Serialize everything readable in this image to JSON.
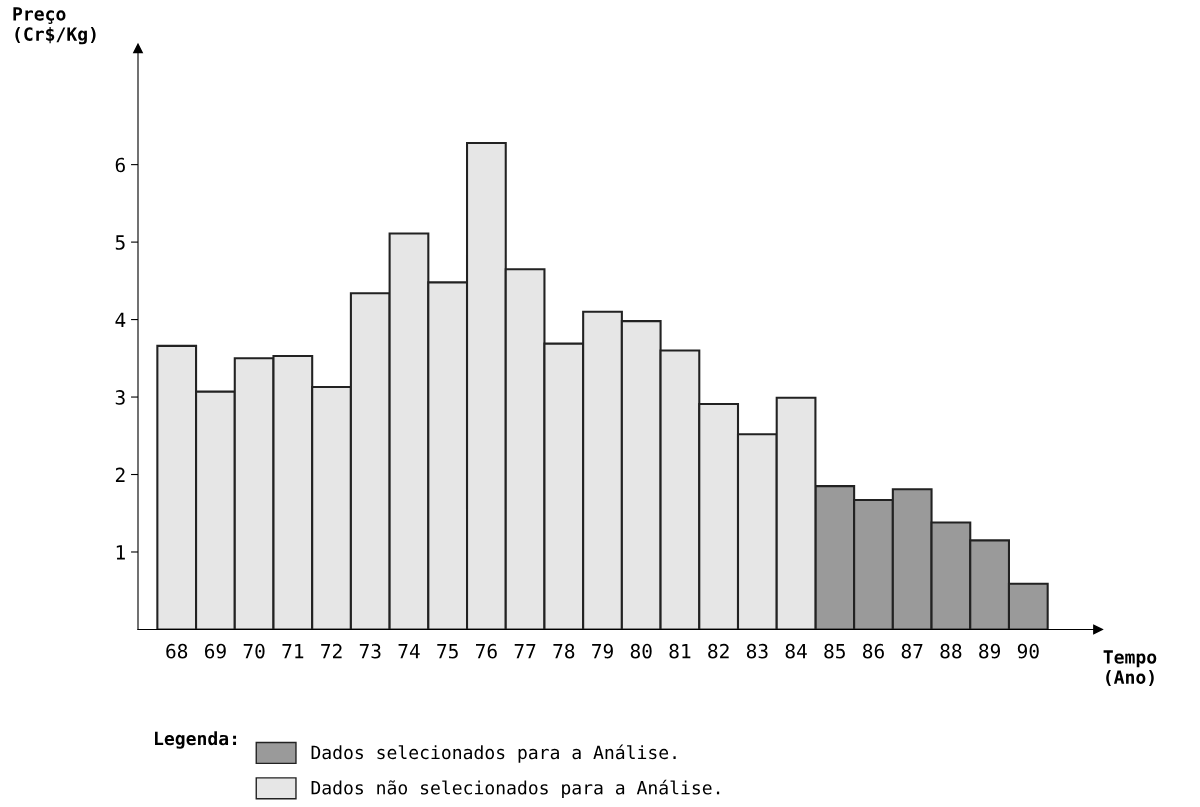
{
  "chart_data": {
    "type": "bar",
    "xlabel": "Tempo\n(Ano)",
    "ylabel": "Preço\n(Cr$/Kg)",
    "legend_title": "Legenda:",
    "categories": [
      "68",
      "69",
      "70",
      "71",
      "72",
      "73",
      "74",
      "75",
      "76",
      "77",
      "78",
      "79",
      "80",
      "81",
      "82",
      "83",
      "84",
      "85",
      "86",
      "87",
      "88",
      "89",
      "90"
    ],
    "series": [
      {
        "name": "Dados selecionados para a Análise.",
        "color": "#9a9a9a",
        "values": [
          null,
          null,
          null,
          null,
          null,
          null,
          null,
          null,
          null,
          null,
          null,
          null,
          null,
          null,
          null,
          null,
          null,
          1.85,
          1.67,
          1.81,
          1.38,
          1.15,
          0.59
        ]
      },
      {
        "name": "Dados não selecionados para a Análise.",
        "color": "#e6e6e6",
        "values": [
          3.66,
          3.07,
          3.5,
          3.53,
          3.13,
          4.34,
          5.11,
          4.48,
          6.28,
          4.65,
          3.69,
          4.1,
          3.98,
          3.6,
          2.91,
          2.52,
          2.99,
          null,
          null,
          null,
          null,
          null,
          null
        ]
      }
    ],
    "ylim": [
      0,
      7.5
    ],
    "yticks": [
      1,
      2,
      3,
      4,
      5,
      6
    ],
    "grid": false,
    "legend": "bottom"
  }
}
